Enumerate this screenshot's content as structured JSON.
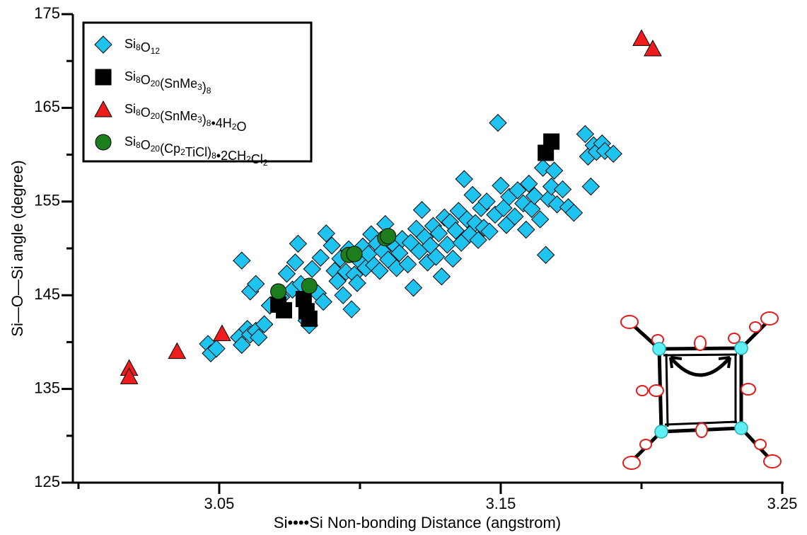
{
  "chart_data": {
    "type": "scatter",
    "x_label": "Si••••Si Non-bonding Distance (angstrom)",
    "y_label": "Si—O—Si angle (degree)",
    "xlim": [
      2.998,
      3.25
    ],
    "ylim": [
      125,
      175
    ],
    "xticks": [
      3.05,
      3.15,
      3.25
    ],
    "xminor_ticks": [
      3.0,
      3.1,
      3.2
    ],
    "yticks": [
      125,
      135,
      145,
      155,
      165,
      175
    ],
    "yminor_ticks": [
      130,
      140,
      150,
      160,
      170
    ],
    "legend": "top-left",
    "series": [
      {
        "name": "Si8O12",
        "color": "#1ec3f0",
        "marker": "diamond",
        "x": [
          3.046,
          3.047,
          3.049,
          3.057,
          3.058,
          3.06,
          3.061,
          3.063,
          3.064,
          3.066,
          3.058,
          3.061,
          3.063,
          3.068,
          3.072,
          3.074,
          3.076,
          3.077,
          3.078,
          3.079,
          3.081,
          3.082,
          3.083,
          3.085,
          3.086,
          3.087,
          3.088,
          3.09,
          3.091,
          3.092,
          3.093,
          3.094,
          3.095,
          3.096,
          3.097,
          3.098,
          3.099,
          3.1,
          3.101,
          3.102,
          3.103,
          3.104,
          3.105,
          3.106,
          3.107,
          3.108,
          3.109,
          3.11,
          3.112,
          3.113,
          3.114,
          3.115,
          3.117,
          3.118,
          3.119,
          3.12,
          3.121,
          3.122,
          3.123,
          3.124,
          3.125,
          3.126,
          3.127,
          3.128,
          3.129,
          3.13,
          3.131,
          3.132,
          3.133,
          3.134,
          3.135,
          3.136,
          3.137,
          3.138,
          3.139,
          3.14,
          3.141,
          3.142,
          3.143,
          3.144,
          3.145,
          3.146,
          3.148,
          3.149,
          3.15,
          3.151,
          3.152,
          3.153,
          3.155,
          3.156,
          3.158,
          3.159,
          3.16,
          3.161,
          3.162,
          3.164,
          3.165,
          3.166,
          3.167,
          3.168,
          3.169,
          3.17,
          3.172,
          3.174,
          3.176,
          3.18,
          3.181,
          3.182,
          3.183,
          3.184,
          3.186,
          3.187,
          3.19
        ],
        "values": [
          139.8,
          138.8,
          139.3,
          140.5,
          139.7,
          141.4,
          140.8,
          141.2,
          140.5,
          141.9,
          148.7,
          145.4,
          146.2,
          143.9,
          144.8,
          147.3,
          145.6,
          148.5,
          150.5,
          146.2,
          142.3,
          141.8,
          147.8,
          145.2,
          149.0,
          144.3,
          151.6,
          150.3,
          147.6,
          146.5,
          148.9,
          145.0,
          147.5,
          149.9,
          143.5,
          147.2,
          146.3,
          148.6,
          150.2,
          147.9,
          149.4,
          151.5,
          148.2,
          150.5,
          147.6,
          149.7,
          152.6,
          148.8,
          150.4,
          147.9,
          149.5,
          151.0,
          148.3,
          150.6,
          145.8,
          152.1,
          149.7,
          154.1,
          151.2,
          148.5,
          150.3,
          152.4,
          149.1,
          151.6,
          147.0,
          153.3,
          150.4,
          152.8,
          148.9,
          151.9,
          154.0,
          150.6,
          157.4,
          153.1,
          151.5,
          155.7,
          152.7,
          150.9,
          154.3,
          152.2,
          155.0,
          151.8,
          153.6,
          163.4,
          156.7,
          154.3,
          152.5,
          155.5,
          153.4,
          156.2,
          154.8,
          152.0,
          156.9,
          154.2,
          155.6,
          153.1,
          158.6,
          149.3,
          155.3,
          156.6,
          158.3,
          154.7,
          156.3,
          154.4,
          153.8,
          162.2,
          159.8,
          156.6,
          161.0,
          160.3,
          161.2,
          160.4,
          160.1
        ]
      },
      {
        "name": "Si8O20(SnMe3)8",
        "color": "#000000",
        "marker": "square",
        "x": [
          3.166,
          3.168,
          3.071,
          3.073,
          3.08,
          3.081,
          3.082
        ],
        "values": [
          160.2,
          161.4,
          144.0,
          143.4,
          144.6,
          143.3,
          142.5
        ]
      },
      {
        "name": "Si8O20(SnMe3)8•4H2O",
        "color": "#ee1c1c",
        "marker": "triangle",
        "x": [
          3.018,
          3.018,
          3.035,
          3.051,
          3.2,
          3.204
        ],
        "values": [
          137.2,
          136.3,
          139.0,
          140.9,
          172.4,
          171.3
        ]
      },
      {
        "name": "Si8O20(Cp2TiCl)8•2CH2Cl2",
        "color": "#1b7d1b",
        "marker": "circle",
        "x": [
          3.071,
          3.082,
          3.096,
          3.098,
          3.109,
          3.11
        ],
        "values": [
          145.4,
          146.0,
          149.3,
          149.4,
          151.1,
          151.3
        ]
      }
    ]
  }
}
